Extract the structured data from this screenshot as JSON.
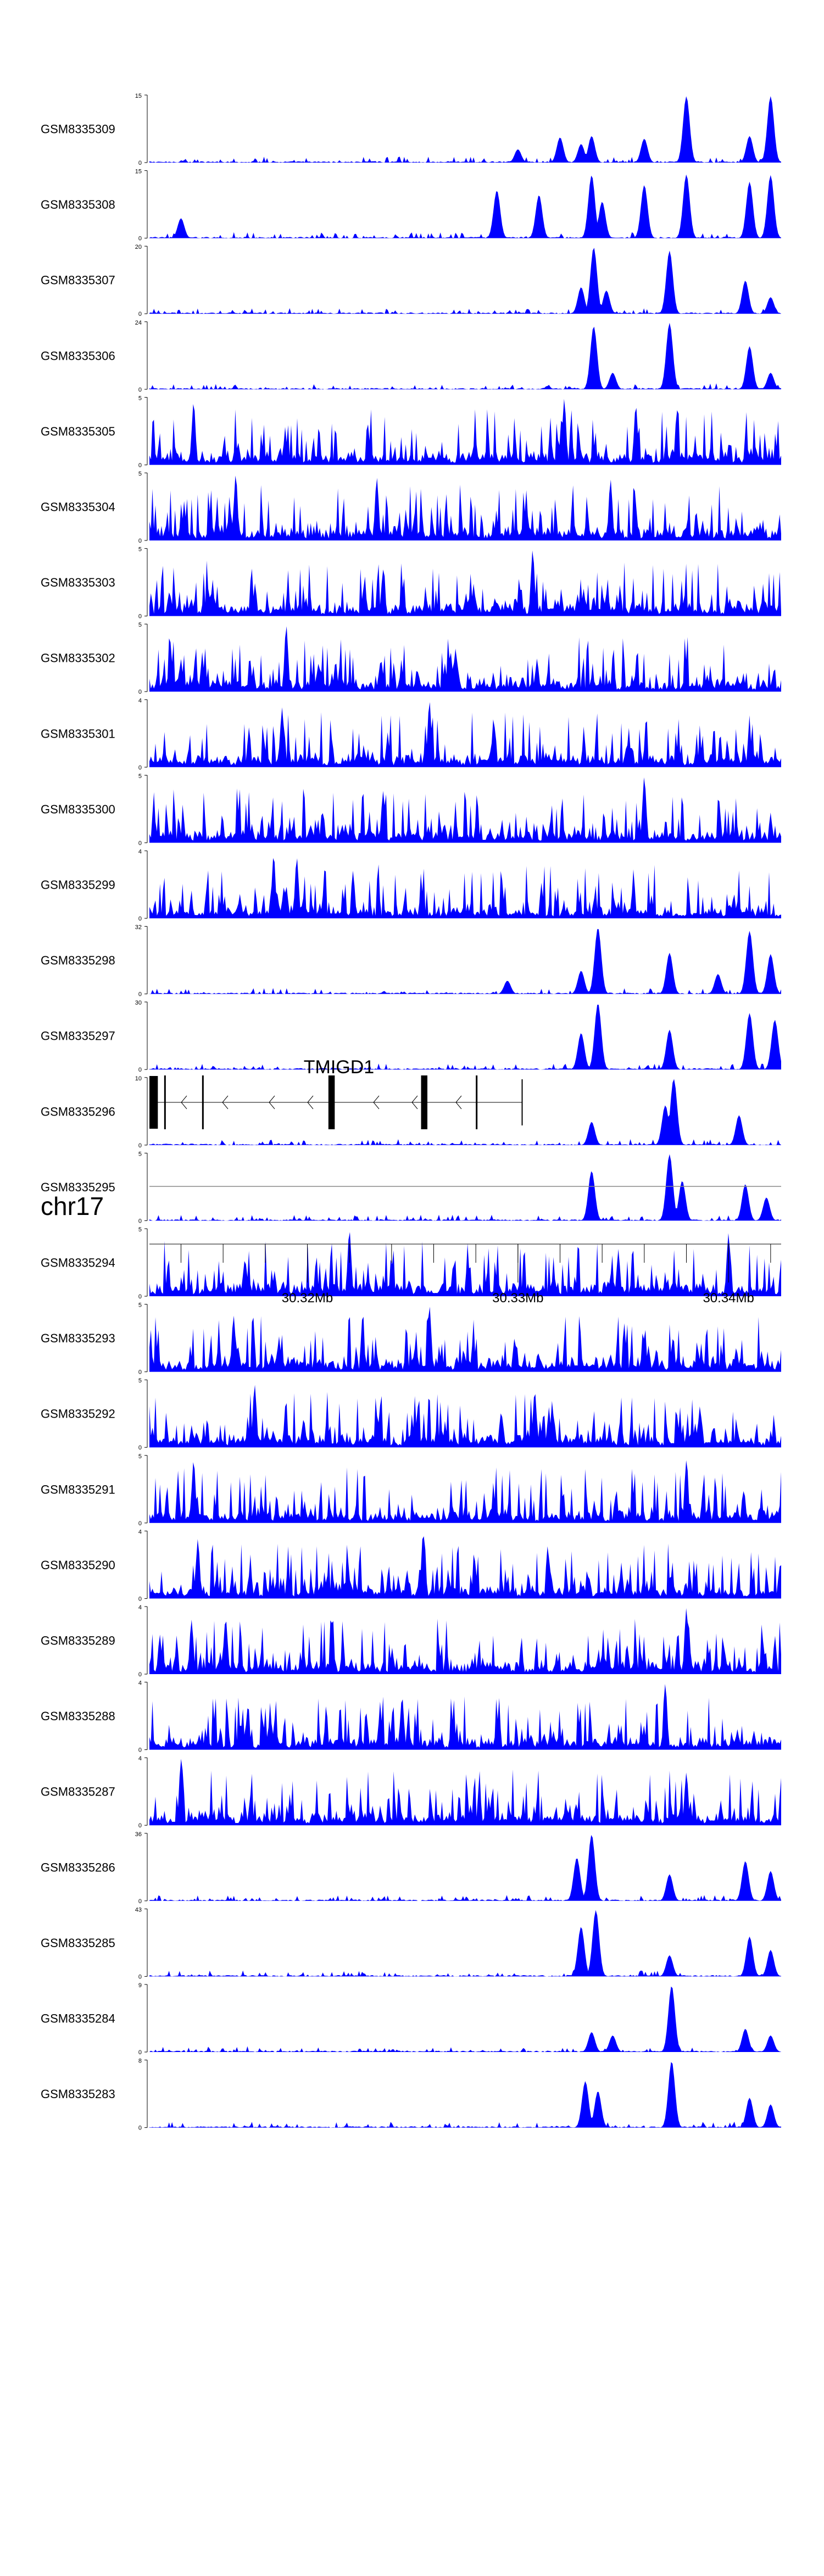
{
  "colors": {
    "signal": "#0000ff",
    "axis": "#000000",
    "gene": "#000000"
  },
  "chart_data": {
    "type": "area",
    "title": "",
    "x_range_mb": [
      30.3125,
      30.3425
    ],
    "tracks": [
      {
        "name": "GSM8335309",
        "ymax_label": "15",
        "ymin_label": "0",
        "peaks": [
          {
            "x": 30.33,
            "h": 0.2
          },
          {
            "x": 30.332,
            "h": 0.38
          },
          {
            "x": 30.333,
            "h": 0.28
          },
          {
            "x": 30.3335,
            "h": 0.4
          },
          {
            "x": 30.336,
            "h": 0.36
          },
          {
            "x": 30.338,
            "h": 1.0
          },
          {
            "x": 30.341,
            "h": 0.4
          },
          {
            "x": 30.342,
            "h": 1.0
          }
        ]
      },
      {
        "name": "GSM8335308",
        "ymax_label": "15",
        "ymin_label": "0",
        "peaks": [
          {
            "x": 30.314,
            "h": 0.3
          },
          {
            "x": 30.329,
            "h": 0.72
          },
          {
            "x": 30.331,
            "h": 0.65
          },
          {
            "x": 30.3335,
            "h": 0.95
          },
          {
            "x": 30.334,
            "h": 0.55
          },
          {
            "x": 30.336,
            "h": 0.8
          },
          {
            "x": 30.338,
            "h": 0.96
          },
          {
            "x": 30.341,
            "h": 0.85
          },
          {
            "x": 30.342,
            "h": 0.95
          }
        ]
      },
      {
        "name": "GSM8335307",
        "ymax_label": "20",
        "ymin_label": "0",
        "peaks": [
          {
            "x": 30.333,
            "h": 0.4
          },
          {
            "x": 30.3336,
            "h": 1.0
          },
          {
            "x": 30.3342,
            "h": 0.35
          },
          {
            "x": 30.3372,
            "h": 0.95
          },
          {
            "x": 30.3408,
            "h": 0.5
          },
          {
            "x": 30.342,
            "h": 0.25
          }
        ]
      },
      {
        "name": "GSM8335306",
        "ymax_label": "24",
        "ymin_label": "0",
        "peaks": [
          {
            "x": 30.3336,
            "h": 0.95
          },
          {
            "x": 30.3345,
            "h": 0.25
          },
          {
            "x": 30.3372,
            "h": 1.0
          },
          {
            "x": 30.341,
            "h": 0.65
          },
          {
            "x": 30.342,
            "h": 0.25
          }
        ]
      },
      {
        "name": "GSM8335305",
        "ymax_label": "5",
        "ymin_label": "0",
        "noisy": true,
        "peaks": [
          {
            "x": 30.3146,
            "h": 0.95
          },
          {
            "x": 30.3322,
            "h": 1.0
          },
          {
            "x": 30.3356,
            "h": 0.9
          }
        ]
      },
      {
        "name": "GSM8335304",
        "ymax_label": "5",
        "ymin_label": "0",
        "noisy": true,
        "peaks": [
          {
            "x": 30.3166,
            "h": 1.0
          },
          {
            "x": 30.3233,
            "h": 0.95
          },
          {
            "x": 30.3344,
            "h": 0.92
          }
        ]
      },
      {
        "name": "GSM8335303",
        "ymax_label": "5",
        "ymin_label": "0",
        "noisy": true,
        "peaks": [
          {
            "x": 30.3307,
            "h": 1.0
          },
          {
            "x": 30.3236,
            "h": 0.7
          }
        ]
      },
      {
        "name": "GSM8335302",
        "ymax_label": "5",
        "ymin_label": "0",
        "noisy": true,
        "peaks": [
          {
            "x": 30.319,
            "h": 1.0
          },
          {
            "x": 30.3268,
            "h": 0.6
          }
        ]
      },
      {
        "name": "GSM8335301",
        "ymax_label": "4",
        "ymin_label": "0",
        "noisy": true,
        "peaks": [
          {
            "x": 30.3258,
            "h": 1.0
          },
          {
            "x": 30.3188,
            "h": 0.9
          }
        ]
      },
      {
        "name": "GSM8335300",
        "ymax_label": "5",
        "ymin_label": "0",
        "noisy": true,
        "peaks": [
          {
            "x": 30.336,
            "h": 1.0
          },
          {
            "x": 30.3236,
            "h": 0.78
          }
        ]
      },
      {
        "name": "GSM8335299",
        "ymax_label": "4",
        "ymin_label": "0",
        "noisy": true,
        "peaks": [
          {
            "x": 30.3184,
            "h": 0.96
          },
          {
            "x": 30.3195,
            "h": 0.92
          }
        ]
      },
      {
        "name": "GSM8335298",
        "ymax_label": "32",
        "ymin_label": "0",
        "peaks": [
          {
            "x": 30.3338,
            "h": 1.0
          },
          {
            "x": 30.333,
            "h": 0.35
          },
          {
            "x": 30.3372,
            "h": 0.62
          },
          {
            "x": 30.341,
            "h": 0.95
          },
          {
            "x": 30.342,
            "h": 0.6
          },
          {
            "x": 30.3395,
            "h": 0.3
          },
          {
            "x": 30.3295,
            "h": 0.2
          }
        ]
      },
      {
        "name": "GSM8335297",
        "ymax_label": "30",
        "ymin_label": "0",
        "peaks": [
          {
            "x": 30.3338,
            "h": 1.0
          },
          {
            "x": 30.333,
            "h": 0.55
          },
          {
            "x": 30.3372,
            "h": 0.6
          },
          {
            "x": 30.341,
            "h": 0.85
          },
          {
            "x": 30.3422,
            "h": 0.75
          }
        ]
      },
      {
        "name": "GSM8335296",
        "ymax_label": "10",
        "ymin_label": "0",
        "peaks": [
          {
            "x": 30.3374,
            "h": 1.0
          },
          {
            "x": 30.3335,
            "h": 0.35
          },
          {
            "x": 30.3405,
            "h": 0.45
          },
          {
            "x": 30.337,
            "h": 0.6
          }
        ]
      },
      {
        "name": "GSM8335295",
        "ymax_label": "5",
        "ymin_label": "0",
        "peaks": [
          {
            "x": 30.3372,
            "h": 1.0
          },
          {
            "x": 30.3335,
            "h": 0.75
          },
          {
            "x": 30.3378,
            "h": 0.6
          },
          {
            "x": 30.3408,
            "h": 0.55
          },
          {
            "x": 30.3418,
            "h": 0.35
          }
        ]
      },
      {
        "name": "GSM8335294",
        "ymax_label": "5",
        "ymin_label": "0",
        "noisy": true,
        "peaks": [
          {
            "x": 30.322,
            "h": 1.0
          },
          {
            "x": 30.34,
            "h": 0.95
          }
        ]
      },
      {
        "name": "GSM8335293",
        "ymax_label": "5",
        "ymin_label": "0",
        "noisy": true,
        "peaks": [
          {
            "x": 30.3258,
            "h": 1.0
          },
          {
            "x": 30.3165,
            "h": 0.85
          }
        ]
      },
      {
        "name": "GSM8335292",
        "ymax_label": "5",
        "ymin_label": "0",
        "noisy": true,
        "peaks": [
          {
            "x": 30.3175,
            "h": 0.95
          },
          {
            "x": 30.3308,
            "h": 0.85
          }
        ]
      },
      {
        "name": "GSM8335291",
        "ymax_label": "5",
        "ymin_label": "0",
        "noisy": true,
        "peaks": [
          {
            "x": 30.3146,
            "h": 0.95
          },
          {
            "x": 30.338,
            "h": 0.95
          }
        ]
      },
      {
        "name": "GSM8335290",
        "ymax_label": "4",
        "ymin_label": "0",
        "noisy": true,
        "peaks": [
          {
            "x": 30.3255,
            "h": 1.0
          },
          {
            "x": 30.3148,
            "h": 0.9
          }
        ]
      },
      {
        "name": "GSM8335289",
        "ymax_label": "4",
        "ymin_label": "0",
        "noisy": true,
        "peaks": [
          {
            "x": 30.338,
            "h": 1.0
          },
          {
            "x": 30.3145,
            "h": 0.82
          }
        ]
      },
      {
        "name": "GSM8335288",
        "ymax_label": "4",
        "ymin_label": "0",
        "noisy": true,
        "peaks": [
          {
            "x": 30.337,
            "h": 1.0
          },
          {
            "x": 30.3245,
            "h": 0.8
          }
        ]
      },
      {
        "name": "GSM8335287",
        "ymax_label": "4",
        "ymin_label": "0",
        "noisy": true,
        "peaks": [
          {
            "x": 30.314,
            "h": 1.0
          },
          {
            "x": 30.338,
            "h": 0.8
          }
        ]
      },
      {
        "name": "GSM8335286",
        "ymax_label": "36",
        "ymin_label": "0",
        "peaks": [
          {
            "x": 30.3335,
            "h": 1.0
          },
          {
            "x": 30.3328,
            "h": 0.65
          },
          {
            "x": 30.3372,
            "h": 0.4
          },
          {
            "x": 30.3408,
            "h": 0.6
          },
          {
            "x": 30.342,
            "h": 0.45
          }
        ]
      },
      {
        "name": "GSM8335285",
        "ymax_label": "43",
        "ymin_label": "0",
        "peaks": [
          {
            "x": 30.3337,
            "h": 1.0
          },
          {
            "x": 30.333,
            "h": 0.75
          },
          {
            "x": 30.3372,
            "h": 0.32
          },
          {
            "x": 30.341,
            "h": 0.6
          },
          {
            "x": 30.342,
            "h": 0.4
          }
        ]
      },
      {
        "name": "GSM8335284",
        "ymax_label": "9",
        "ymin_label": "0",
        "peaks": [
          {
            "x": 30.3373,
            "h": 1.0
          },
          {
            "x": 30.3335,
            "h": 0.3
          },
          {
            "x": 30.3345,
            "h": 0.25
          },
          {
            "x": 30.3408,
            "h": 0.35
          },
          {
            "x": 30.342,
            "h": 0.25
          }
        ]
      },
      {
        "name": "GSM8335283",
        "ymax_label": "8",
        "ymin_label": "0",
        "peaks": [
          {
            "x": 30.3373,
            "h": 1.0
          },
          {
            "x": 30.3332,
            "h": 0.7
          },
          {
            "x": 30.3338,
            "h": 0.55
          },
          {
            "x": 30.341,
            "h": 0.45
          },
          {
            "x": 30.342,
            "h": 0.35
          }
        ]
      }
    ],
    "gene": {
      "name": "TMIGD1",
      "strand": "-",
      "start_mb": 30.3125,
      "end_mb": 30.3302,
      "exons": [
        {
          "s": 30.3125,
          "e": 30.3129
        },
        {
          "s": 30.3132,
          "e": 30.31325
        },
        {
          "s": 30.315,
          "e": 30.31505
        },
        {
          "s": 30.321,
          "e": 30.3213
        },
        {
          "s": 30.3254,
          "e": 30.3257
        },
        {
          "s": 30.328,
          "e": 30.32805
        }
      ],
      "utr_end_mb": 30.3302
    },
    "chromosome": "chr17",
    "axis_ticks_mb": [
      30.314,
      30.316,
      30.318,
      30.32,
      30.322,
      30.324,
      30.326,
      30.328,
      30.33,
      30.332,
      30.334,
      30.336,
      30.338,
      30.34,
      30.342
    ],
    "axis_labels": [
      {
        "mb": 30.32,
        "text": "30.32Mb"
      },
      {
        "mb": 30.33,
        "text": "30.33Mb"
      },
      {
        "mb": 30.34,
        "text": "30.34Mb"
      }
    ]
  }
}
